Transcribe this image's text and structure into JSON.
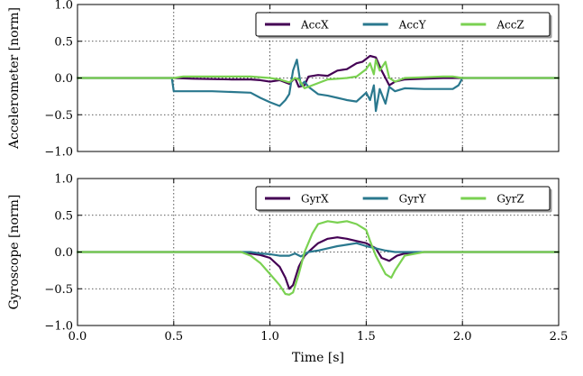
{
  "chart_data": [
    {
      "type": "line",
      "title": "",
      "xlabel": "",
      "ylabel": "Accelerometer [norm]",
      "xlim": [
        0,
        2.5
      ],
      "ylim": [
        -1.0,
        1.0
      ],
      "xticks": [
        0.0,
        0.5,
        1.0,
        1.5,
        2.0,
        2.5
      ],
      "yticks": [
        -1.0,
        -0.5,
        0.0,
        0.5,
        1.0
      ],
      "xtick_labels": [],
      "ytick_labels": [
        "−1.0",
        "−0.5",
        "0.0",
        "0.5",
        "1.0"
      ],
      "grid": true,
      "legend": "top-right",
      "series": [
        {
          "name": "AccX",
          "color": "#440154",
          "x": [
            0.0,
            0.5,
            0.6,
            0.8,
            0.9,
            0.95,
            1.0,
            1.05,
            1.1,
            1.13,
            1.15,
            1.18,
            1.2,
            1.25,
            1.3,
            1.35,
            1.4,
            1.45,
            1.48,
            1.52,
            1.55,
            1.58,
            1.6,
            1.62,
            1.65,
            1.7,
            1.8,
            1.9,
            2.0,
            2.5
          ],
          "y": [
            0.0,
            0.0,
            -0.01,
            -0.02,
            -0.02,
            -0.03,
            -0.05,
            -0.03,
            -0.08,
            0.0,
            -0.12,
            -0.1,
            0.02,
            0.04,
            0.03,
            0.1,
            0.12,
            0.2,
            0.22,
            0.3,
            0.28,
            0.1,
            0.0,
            -0.1,
            -0.05,
            -0.02,
            -0.01,
            0.0,
            0.0,
            0.0
          ]
        },
        {
          "name": "AccY",
          "color": "#2a788e",
          "x": [
            0.0,
            0.49,
            0.5,
            0.7,
            0.9,
            0.95,
            1.0,
            1.05,
            1.08,
            1.1,
            1.12,
            1.14,
            1.16,
            1.18,
            1.2,
            1.25,
            1.3,
            1.35,
            1.4,
            1.45,
            1.5,
            1.52,
            1.54,
            1.55,
            1.57,
            1.6,
            1.62,
            1.65,
            1.7,
            1.8,
            1.95,
            1.98,
            2.0,
            2.5
          ],
          "y": [
            0.0,
            0.0,
            -0.18,
            -0.18,
            -0.2,
            -0.27,
            -0.33,
            -0.38,
            -0.3,
            -0.22,
            0.1,
            0.25,
            -0.1,
            -0.05,
            -0.12,
            -0.22,
            -0.24,
            -0.27,
            -0.3,
            -0.32,
            -0.2,
            -0.3,
            -0.1,
            -0.45,
            -0.15,
            -0.35,
            -0.12,
            -0.18,
            -0.14,
            -0.15,
            -0.15,
            -0.1,
            0.0,
            0.0
          ]
        },
        {
          "name": "AccZ",
          "color": "#7ad151",
          "x": [
            0.0,
            0.5,
            0.55,
            0.8,
            0.9,
            1.0,
            1.05,
            1.1,
            1.13,
            1.15,
            1.18,
            1.22,
            1.3,
            1.4,
            1.45,
            1.5,
            1.52,
            1.54,
            1.55,
            1.57,
            1.6,
            1.62,
            1.65,
            1.7,
            1.8,
            1.9,
            1.95,
            2.0,
            2.5
          ],
          "y": [
            0.0,
            0.0,
            0.02,
            0.02,
            0.02,
            0.0,
            -0.02,
            -0.06,
            0.0,
            -0.02,
            -0.14,
            -0.1,
            -0.02,
            0.0,
            0.02,
            0.12,
            0.2,
            0.05,
            0.25,
            0.1,
            0.22,
            0.0,
            -0.05,
            0.0,
            0.01,
            0.02,
            0.02,
            0.0,
            0.0
          ]
        }
      ]
    },
    {
      "type": "line",
      "title": "",
      "xlabel": "Time [s]",
      "ylabel": "Gyroscope [norm]",
      "xlim": [
        0,
        2.5
      ],
      "ylim": [
        -1.0,
        1.0
      ],
      "xticks": [
        0.0,
        0.5,
        1.0,
        1.5,
        2.0,
        2.5
      ],
      "yticks": [
        -1.0,
        -0.5,
        0.0,
        0.5,
        1.0
      ],
      "xtick_labels": [
        "0.0",
        "0.5",
        "1.0",
        "1.5",
        "2.0",
        "2.5"
      ],
      "ytick_labels": [
        "−1.0",
        "−0.5",
        "0.0",
        "0.5",
        "1.0"
      ],
      "grid": true,
      "legend": "top-right",
      "series": [
        {
          "name": "GyrX",
          "color": "#440154",
          "x": [
            0.0,
            0.85,
            0.9,
            0.95,
            1.0,
            1.05,
            1.08,
            1.1,
            1.12,
            1.15,
            1.18,
            1.22,
            1.25,
            1.3,
            1.35,
            1.4,
            1.45,
            1.5,
            1.55,
            1.58,
            1.62,
            1.66,
            1.7,
            1.8,
            2.5
          ],
          "y": [
            0.0,
            0.0,
            -0.02,
            -0.04,
            -0.08,
            -0.2,
            -0.35,
            -0.5,
            -0.45,
            -0.2,
            -0.05,
            0.05,
            0.12,
            0.18,
            0.2,
            0.18,
            0.15,
            0.12,
            0.05,
            -0.08,
            -0.12,
            -0.05,
            -0.02,
            0.0,
            0.0
          ]
        },
        {
          "name": "GyrY",
          "color": "#2a788e",
          "x": [
            0.0,
            0.9,
            0.95,
            1.0,
            1.05,
            1.1,
            1.13,
            1.16,
            1.2,
            1.25,
            1.3,
            1.35,
            1.4,
            1.45,
            1.5,
            1.55,
            1.6,
            1.65,
            1.7,
            2.5
          ],
          "y": [
            0.0,
            0.0,
            -0.02,
            -0.03,
            -0.05,
            -0.05,
            -0.02,
            -0.06,
            0.0,
            0.02,
            0.05,
            0.08,
            0.1,
            0.12,
            0.08,
            0.05,
            0.02,
            0.0,
            0.0,
            0.0
          ]
        },
        {
          "name": "GyrZ",
          "color": "#7ad151",
          "x": [
            0.0,
            0.85,
            0.9,
            0.95,
            1.0,
            1.05,
            1.08,
            1.1,
            1.12,
            1.15,
            1.18,
            1.22,
            1.25,
            1.3,
            1.35,
            1.4,
            1.45,
            1.5,
            1.52,
            1.55,
            1.58,
            1.6,
            1.63,
            1.65,
            1.7,
            1.8,
            2.5
          ],
          "y": [
            0.0,
            0.0,
            -0.05,
            -0.15,
            -0.3,
            -0.45,
            -0.57,
            -0.58,
            -0.55,
            -0.3,
            0.0,
            0.25,
            0.38,
            0.42,
            0.4,
            0.42,
            0.38,
            0.3,
            0.15,
            -0.05,
            -0.2,
            -0.3,
            -0.35,
            -0.25,
            -0.05,
            0.0,
            0.0
          ]
        }
      ]
    }
  ]
}
